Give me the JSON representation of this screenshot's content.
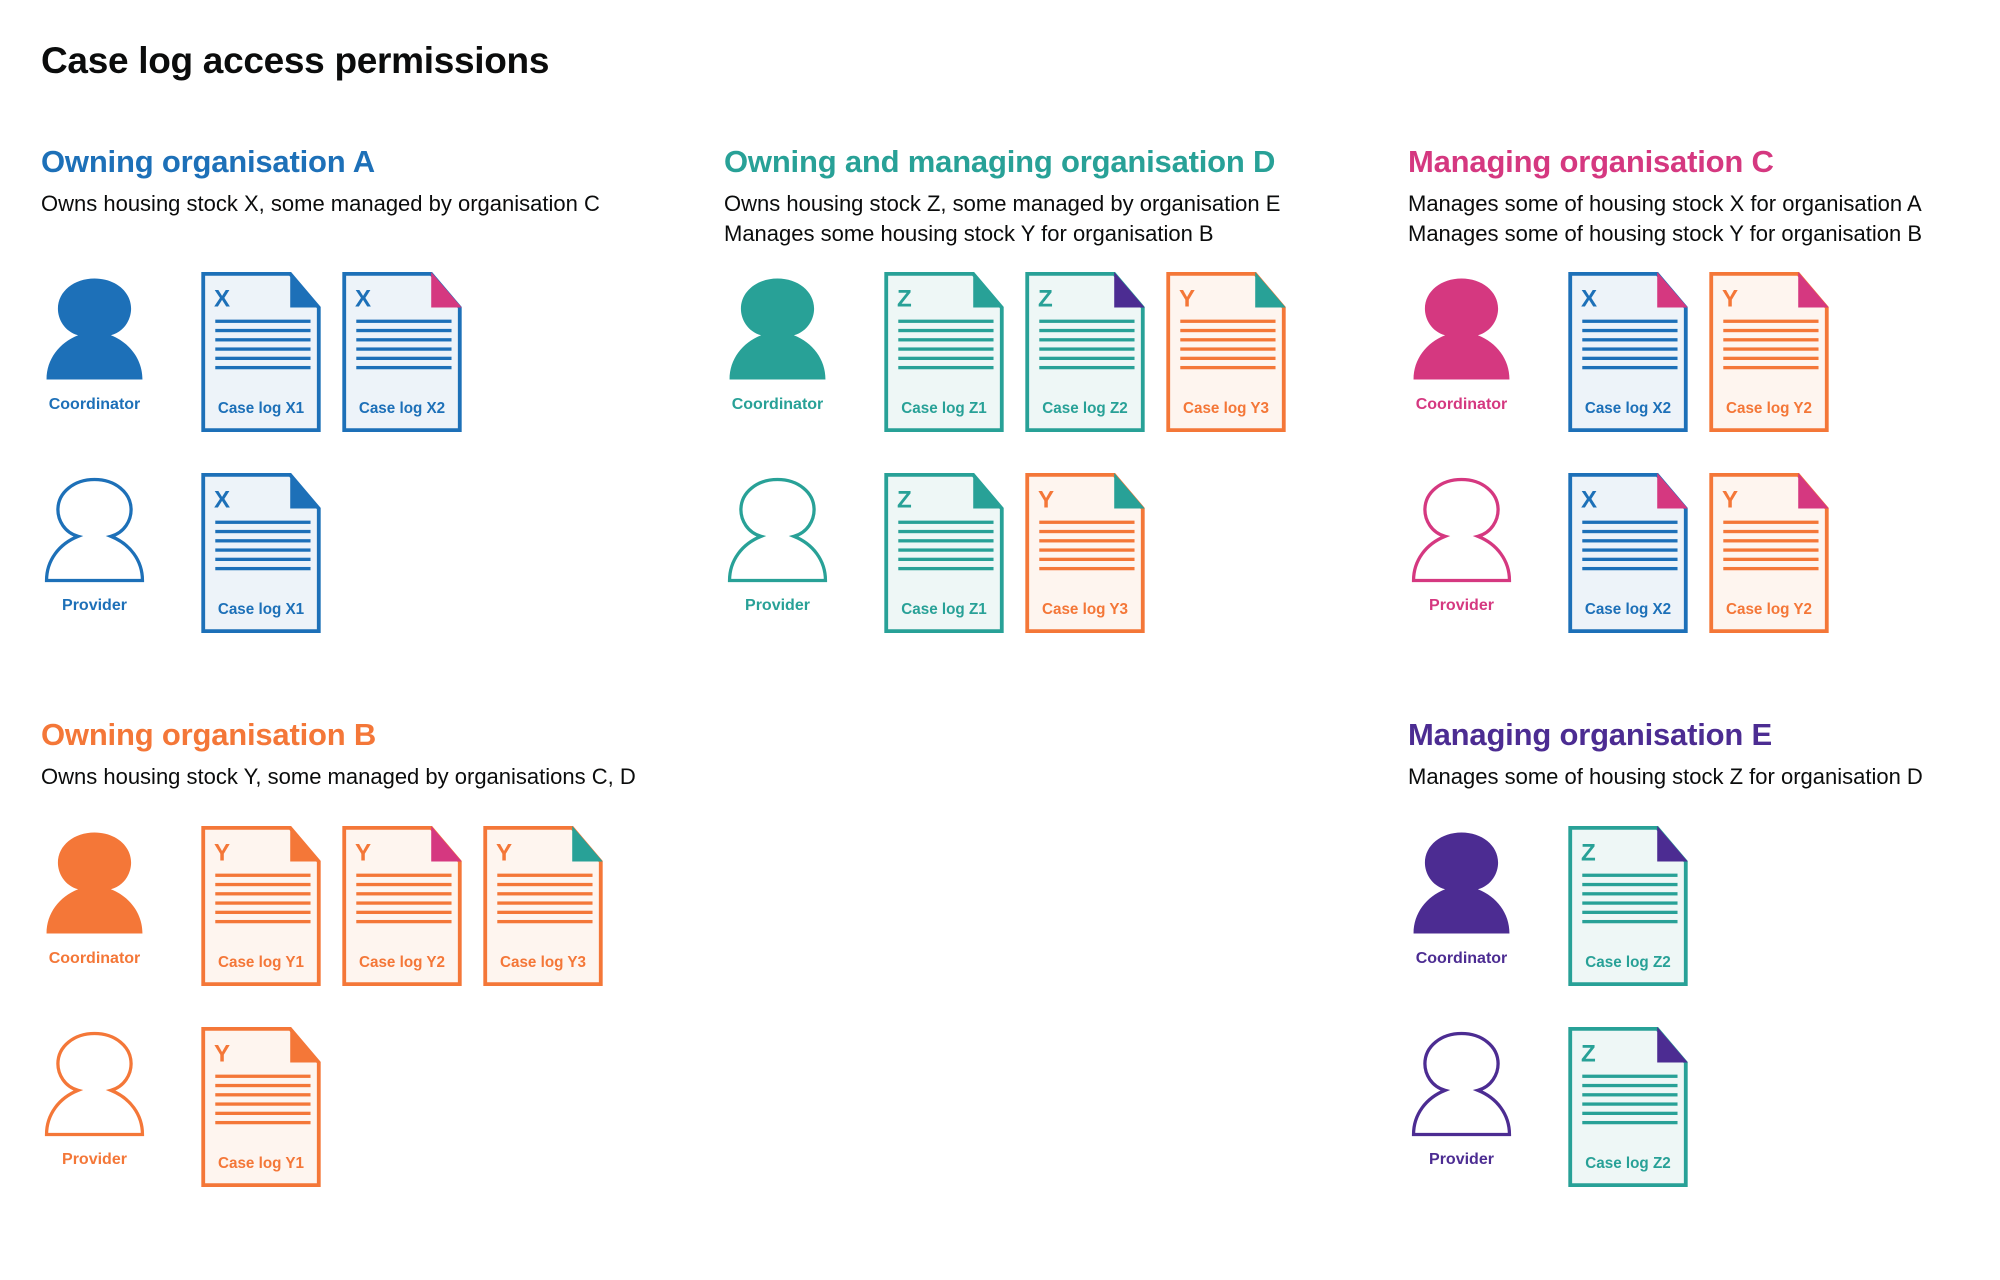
{
  "title": "Case log access permissions",
  "colors": {
    "blue": "#1d70b8",
    "teal": "#28a197",
    "pink": "#d53880",
    "orange": "#f47738",
    "purple": "#4c2c92"
  },
  "sections": [
    {
      "id": "a",
      "heading": "Owning organisation A",
      "color": "#1d70b8",
      "description": [
        "Owns housing stock X, some managed by organisation C"
      ],
      "rows": [
        {
          "role": "Coordinator",
          "filled": true,
          "docs": [
            {
              "letter": "X",
              "label": "Case log X1",
              "color": "#1d70b8",
              "corner": "#1d70b8"
            },
            {
              "letter": "X",
              "label": "Case log X2",
              "color": "#1d70b8",
              "corner": "#d53880"
            }
          ]
        },
        {
          "role": "Provider",
          "filled": false,
          "docs": [
            {
              "letter": "X",
              "label": "Case log X1",
              "color": "#1d70b8",
              "corner": "#1d70b8"
            }
          ]
        }
      ]
    },
    {
      "id": "d",
      "heading": "Owning and managing organisation D",
      "color": "#28a197",
      "description": [
        "Owns housing stock Z, some managed by organisation E",
        "Manages some housing stock Y for organisation B"
      ],
      "rows": [
        {
          "role": "Coordinator",
          "filled": true,
          "docs": [
            {
              "letter": "Z",
              "label": "Case log Z1",
              "color": "#28a197",
              "corner": "#28a197"
            },
            {
              "letter": "Z",
              "label": "Case log Z2",
              "color": "#28a197",
              "corner": "#4c2c92"
            },
            {
              "letter": "Y",
              "label": "Case log Y3",
              "color": "#f47738",
              "corner": "#28a197"
            }
          ]
        },
        {
          "role": "Provider",
          "filled": false,
          "docs": [
            {
              "letter": "Z",
              "label": "Case log Z1",
              "color": "#28a197",
              "corner": "#28a197"
            },
            {
              "letter": "Y",
              "label": "Case log Y3",
              "color": "#f47738",
              "corner": "#28a197"
            }
          ]
        }
      ]
    },
    {
      "id": "c",
      "heading": "Managing organisation C",
      "color": "#d53880",
      "description": [
        "Manages some of housing stock X for organisation A",
        "Manages some of housing stock Y for organisation B"
      ],
      "rows": [
        {
          "role": "Coordinator",
          "filled": true,
          "docs": [
            {
              "letter": "X",
              "label": "Case log X2",
              "color": "#1d70b8",
              "corner": "#d53880"
            },
            {
              "letter": "Y",
              "label": "Case log Y2",
              "color": "#f47738",
              "corner": "#d53880"
            }
          ]
        },
        {
          "role": "Provider",
          "filled": false,
          "docs": [
            {
              "letter": "X",
              "label": "Case log X2",
              "color": "#1d70b8",
              "corner": "#d53880"
            },
            {
              "letter": "Y",
              "label": "Case log Y2",
              "color": "#f47738",
              "corner": "#d53880"
            }
          ]
        }
      ]
    },
    {
      "id": "b",
      "heading": "Owning organisation B",
      "color": "#f47738",
      "description": [
        "Owns housing stock Y, some managed by organisations C, D"
      ],
      "rows": [
        {
          "role": "Coordinator",
          "filled": true,
          "docs": [
            {
              "letter": "Y",
              "label": "Case log Y1",
              "color": "#f47738",
              "corner": "#f47738"
            },
            {
              "letter": "Y",
              "label": "Case log Y2",
              "color": "#f47738",
              "corner": "#d53880"
            },
            {
              "letter": "Y",
              "label": "Case log Y3",
              "color": "#f47738",
              "corner": "#28a197"
            }
          ]
        },
        {
          "role": "Provider",
          "filled": false,
          "docs": [
            {
              "letter": "Y",
              "label": "Case log Y1",
              "color": "#f47738",
              "corner": "#f47738"
            }
          ]
        }
      ]
    },
    {
      "id": "e",
      "heading": "Managing organisation E",
      "color": "#4c2c92",
      "description": [
        "Manages some of housing stock Z for organisation D"
      ],
      "rows": [
        {
          "role": "Coordinator",
          "filled": true,
          "docs": [
            {
              "letter": "Z",
              "label": "Case log Z2",
              "color": "#28a197",
              "corner": "#4c2c92"
            }
          ]
        },
        {
          "role": "Provider",
          "filled": false,
          "docs": [
            {
              "letter": "Z",
              "label": "Case log Z2",
              "color": "#28a197",
              "corner": "#4c2c92"
            }
          ]
        }
      ]
    }
  ]
}
